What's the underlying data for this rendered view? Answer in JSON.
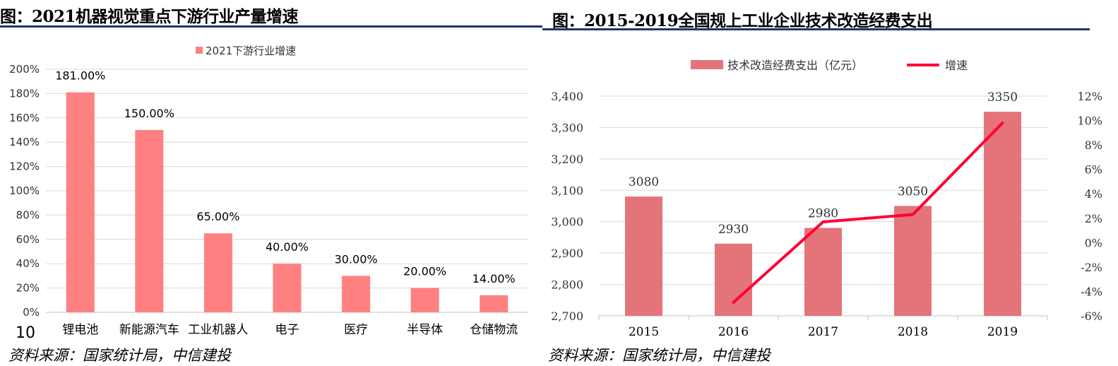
{
  "left": {
    "title": "图：2021机器视觉重点下游行业产量增速",
    "source": "资料来源：国家统计局，中信建投",
    "page_number": "10"
  },
  "right": {
    "title": "图：2015-2019全国规上工业企业技术改造经费支出",
    "source": "资料来源：国家统计局，中信建投"
  },
  "colors": {
    "left_bar": "#ff8080",
    "right_bar": "#e5737a",
    "line": "#ff0033",
    "grid": "#d9d9d9",
    "rule": "#1f3864"
  },
  "chart_data": [
    {
      "type": "bar",
      "legend": [
        "2021下游行业增速"
      ],
      "legend_position": "top-center",
      "categories": [
        "锂电池",
        "新能源汽车",
        "工业机器人",
        "电子",
        "医疗",
        "半导体",
        "仓储物流"
      ],
      "series": [
        {
          "name": "2021下游行业增速",
          "values": [
            181,
            150,
            65,
            40,
            30,
            20,
            14
          ]
        }
      ],
      "data_labels": [
        "181.00%",
        "150.00%",
        "65.00%",
        "40.00%",
        "30.00%",
        "20.00%",
        "14.00%"
      ],
      "y_ticks": [
        "0%",
        "20%",
        "40%",
        "60%",
        "80%",
        "100%",
        "120%",
        "140%",
        "160%",
        "180%",
        "200%"
      ],
      "ylim": [
        0,
        200
      ],
      "grid": true
    },
    {
      "type": "bar",
      "legend": [
        "技术改造经费支出（亿元）",
        "增速"
      ],
      "legend_position": "top-center",
      "categories": [
        "2015",
        "2016",
        "2017",
        "2018",
        "2019"
      ],
      "series": [
        {
          "name": "技术改造经费支出（亿元）",
          "type": "bar",
          "axis": "left",
          "values": [
            3080,
            2930,
            2980,
            3050,
            3350
          ]
        },
        {
          "name": "增速",
          "type": "line",
          "axis": "right",
          "values": [
            null,
            -4.9,
            1.7,
            2.3,
            9.8
          ]
        }
      ],
      "data_labels": [
        "3080",
        "2930",
        "2980",
        "3050",
        "3350"
      ],
      "y_ticks": [
        "2,700",
        "2,800",
        "2,900",
        "3,000",
        "3,100",
        "3,200",
        "3,300",
        "3,400"
      ],
      "ylim": [
        2700,
        3400
      ],
      "y2_ticks": [
        "-6%",
        "-4%",
        "-2%",
        "0%",
        "2%",
        "4%",
        "6%",
        "8%",
        "10%",
        "12%"
      ],
      "y2lim": [
        -6,
        12
      ],
      "grid": true
    }
  ]
}
